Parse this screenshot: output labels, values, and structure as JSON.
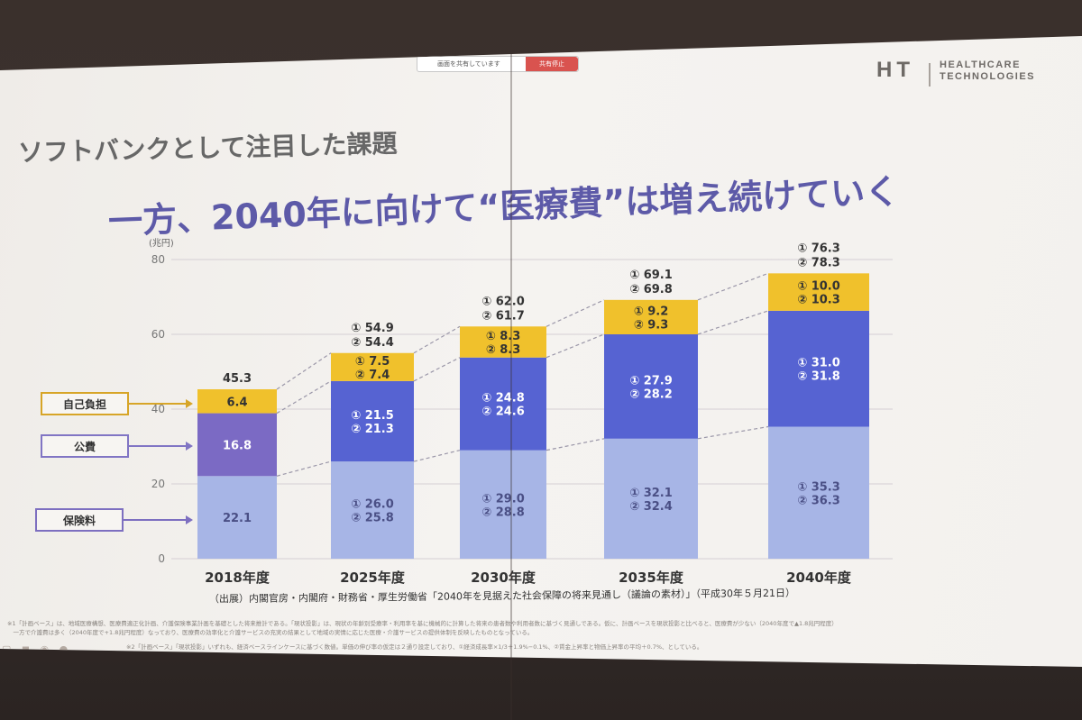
{
  "meeting": {
    "share_status": "画面を共有しています",
    "stop_share_label": "共有停止"
  },
  "logo": {
    "mark": "HT",
    "line1": "HEALTHCARE",
    "line2": "TECHNOLOGIES"
  },
  "slide": {
    "heading": "ソフトバンクとして注目した課題",
    "subtitle": "一方、2040年に向けて“医療費”は増え続けていく",
    "source": "（出展）内閣官房・内閣府・財務省・厚生労働省「2040年を見据えた社会保障の将来見通し（議論の素材）」（平成30年５月21日）",
    "footnote_1": "※1「計画ベース」は、地域医療構想、医療費適正化計画、介護保険事業計画を基礎とした将来推計である。「現状投影」は、現状の年齢別受療率・利用率を基に機械的に計算した将来の患者数や利用者数に基づく見通しである。仮に、計画ベースを現状投影と比べると、医療費が少ない（2040年度で▲1.8兆円程度）",
    "footnote_2": "　一方で介護費は多く（2040年度で+1.8兆円程度）なっており、医療費の効率化と介護サービスの充実の結果として地域の実情に応じた医療・介護サービスの提供体制を反映したものとなっている。",
    "footnote_3": "※2「計画ベース」「現状投影」いずれも、経済ベースラインケースに基づく数値。単価の伸び率の仮定は２通り設定しており、①経済成長率×1/3＋1.9%−0.1%、②賃金上昇率と物価上昇率の平均＋0.7%、としている。"
  },
  "chart_data": {
    "type": "bar",
    "stacked": true,
    "unit_label": "(兆円)",
    "categories": [
      "2018年度",
      "2025年度",
      "2030年度",
      "2035年度",
      "2040年度"
    ],
    "ylim": [
      0,
      80
    ],
    "yticks": [
      "0",
      "20",
      "40",
      "60",
      "80"
    ],
    "grid": true,
    "series": [
      {
        "name": "保険料",
        "color": "#a7b5e6",
        "values": [
          22.1,
          26.0,
          29.0,
          32.1,
          35.3
        ],
        "labels": [
          [
            "22.1"
          ],
          [
            "① 26.0",
            "② 25.8"
          ],
          [
            "① 29.0",
            "② 28.8"
          ],
          [
            "① 32.1",
            "② 32.4"
          ],
          [
            "① 35.3",
            "② 36.3"
          ]
        ]
      },
      {
        "name": "公費",
        "color_2018": "#7b6ac4",
        "color": "#5663d2",
        "values": [
          16.8,
          21.5,
          24.8,
          27.9,
          31.0
        ],
        "labels": [
          [
            "16.8"
          ],
          [
            "① 21.5",
            "② 21.3"
          ],
          [
            "① 24.8",
            "② 24.6"
          ],
          [
            "① 27.9",
            "② 28.2"
          ],
          [
            "① 31.0",
            "② 31.8"
          ]
        ]
      },
      {
        "name": "自己負担",
        "color": "#f0c12c",
        "values": [
          6.4,
          7.5,
          8.3,
          9.2,
          10.0
        ],
        "labels": [
          [
            "6.4"
          ],
          [
            "① 7.5",
            "② 7.4"
          ],
          [
            "① 8.3",
            "② 8.3"
          ],
          [
            "① 9.2",
            "② 9.3"
          ],
          [
            "① 10.0",
            "② 10.3"
          ]
        ]
      }
    ],
    "totals": [
      [
        "45.3"
      ],
      [
        "① 54.9",
        "② 54.4"
      ],
      [
        "① 62.0",
        "② 61.7"
      ],
      [
        "① 69.1",
        "② 69.8"
      ],
      [
        "① 76.3",
        "② 78.3"
      ]
    ],
    "legend_colors": {
      "自己負担": "#d7a528",
      "公費": "#8175c4",
      "保険料": "#7d6fc0"
    }
  }
}
